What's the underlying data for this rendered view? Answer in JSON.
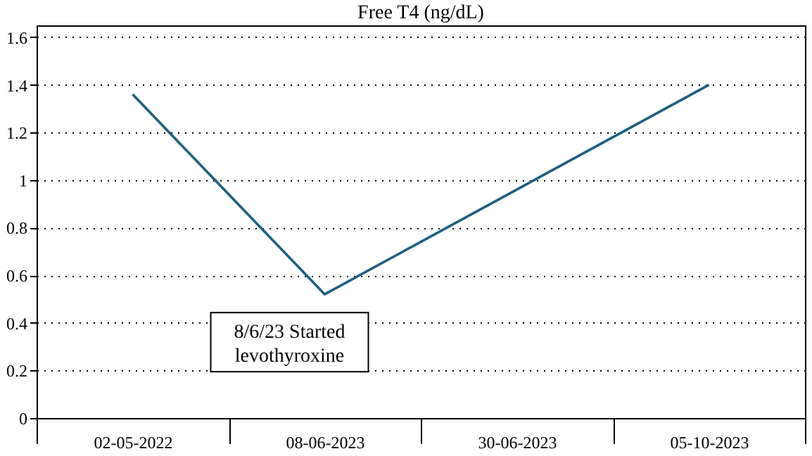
{
  "chart_data": {
    "type": "line",
    "title": "Free T4 (ng/dL)",
    "categories": [
      "02-05-2022",
      "08-06-2023",
      "30-06-2023",
      "05-10-2023"
    ],
    "series": [
      {
        "color": "#1f5f7f",
        "values": [
          1.36,
          0.52,
          0.96,
          1.4
        ]
      }
    ],
    "ylim": [
      0,
      1.65
    ],
    "yticks": [
      0,
      0.2,
      0.4,
      0.6,
      0.8,
      1,
      1.2,
      1.4,
      1.6
    ],
    "grid": "y",
    "marker": "none",
    "line_style": "solid",
    "annotations": [
      {
        "text": "8/6/23 Started levothyroxine",
        "x": "08-06-2023",
        "y": 0.52
      }
    ]
  }
}
